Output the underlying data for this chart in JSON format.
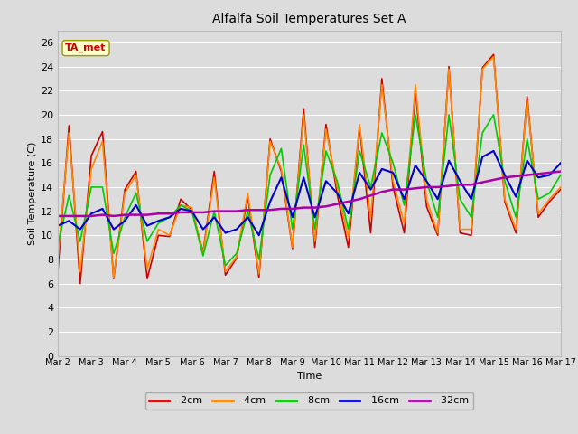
{
  "title": "Alfalfa Soil Temperatures Set A",
  "xlabel": "Time",
  "ylabel": "Soil Temperature (C)",
  "ylim": [
    0,
    27
  ],
  "yticks": [
    0,
    2,
    4,
    6,
    8,
    10,
    12,
    14,
    16,
    18,
    20,
    22,
    24,
    26
  ],
  "bg_color": "#dcdcdc",
  "fig_bg": "#dcdcdc",
  "legend_label": "TA_met",
  "series": {
    "neg2cm": {
      "label": "-2cm",
      "color": "#cc0000",
      "linewidth": 1.2,
      "values": [
        7.0,
        19.1,
        6.0,
        16.6,
        18.6,
        6.4,
        13.8,
        15.3,
        6.4,
        10.0,
        9.9,
        13.0,
        12.1,
        8.6,
        15.3,
        6.7,
        8.1,
        13.2,
        6.5,
        18.0,
        15.3,
        8.9,
        20.5,
        9.0,
        19.2,
        13.4,
        9.0,
        19.0,
        10.2,
        23.0,
        14.0,
        10.2,
        22.0,
        12.4,
        10.0,
        24.0,
        10.2,
        10.0,
        23.9,
        25.0,
        12.8,
        10.2,
        21.5,
        11.5,
        12.8,
        13.8
      ]
    },
    "neg4cm": {
      "label": "-4cm",
      "color": "#ff8800",
      "linewidth": 1.2,
      "values": [
        8.0,
        18.5,
        7.0,
        15.5,
        17.8,
        6.5,
        13.5,
        15.0,
        7.2,
        10.5,
        10.0,
        12.5,
        12.3,
        8.5,
        14.8,
        7.0,
        8.2,
        13.5,
        6.8,
        17.8,
        15.5,
        9.0,
        20.0,
        9.5,
        18.8,
        14.0,
        9.8,
        19.2,
        11.5,
        22.5,
        14.5,
        11.0,
        22.5,
        13.0,
        10.2,
        23.8,
        10.5,
        10.5,
        23.8,
        24.8,
        13.0,
        10.5,
        21.2,
        11.8,
        13.0,
        14.0
      ]
    },
    "neg8cm": {
      "label": "-8cm",
      "color": "#00cc00",
      "linewidth": 1.2,
      "values": [
        9.2,
        13.3,
        9.5,
        14.0,
        14.0,
        8.5,
        11.5,
        13.5,
        9.5,
        11.0,
        11.5,
        12.5,
        12.0,
        8.3,
        12.0,
        7.5,
        8.5,
        12.0,
        8.0,
        15.0,
        17.2,
        10.5,
        17.5,
        10.5,
        17.0,
        14.5,
        10.5,
        17.0,
        14.0,
        18.5,
        16.0,
        12.5,
        20.0,
        14.5,
        11.5,
        20.0,
        13.0,
        11.5,
        18.5,
        20.0,
        14.5,
        11.5,
        18.0,
        13.0,
        13.5,
        15.0
      ]
    },
    "neg16cm": {
      "label": "-16cm",
      "color": "#0000cc",
      "linewidth": 1.5,
      "values": [
        10.8,
        11.2,
        10.5,
        11.8,
        12.2,
        10.5,
        11.2,
        12.5,
        10.8,
        11.2,
        11.5,
        12.2,
        12.0,
        10.5,
        11.5,
        10.2,
        10.5,
        11.5,
        10.0,
        12.8,
        14.8,
        11.5,
        14.8,
        11.5,
        14.5,
        13.5,
        11.8,
        15.2,
        13.8,
        15.5,
        15.2,
        13.0,
        15.8,
        14.5,
        13.0,
        16.2,
        14.5,
        13.0,
        16.5,
        17.0,
        15.0,
        13.2,
        16.2,
        14.8,
        15.0,
        16.0
      ]
    },
    "neg32cm": {
      "label": "-32cm",
      "color": "#aa00aa",
      "linewidth": 1.8,
      "values": [
        11.6,
        11.6,
        11.6,
        11.6,
        11.7,
        11.6,
        11.7,
        11.7,
        11.7,
        11.8,
        11.8,
        11.9,
        11.9,
        11.9,
        12.0,
        12.0,
        12.0,
        12.1,
        12.1,
        12.1,
        12.2,
        12.2,
        12.3,
        12.3,
        12.4,
        12.6,
        12.8,
        13.0,
        13.3,
        13.6,
        13.8,
        13.8,
        13.9,
        14.0,
        14.0,
        14.1,
        14.2,
        14.2,
        14.4,
        14.6,
        14.8,
        14.9,
        15.0,
        15.1,
        15.2,
        15.3
      ]
    }
  },
  "xtick_labels": [
    "Mar 2",
    "Mar 3",
    "Mar 4",
    "Mar 5",
    "Mar 6",
    "Mar 7",
    "Mar 8",
    "Mar 9",
    "Mar 10",
    "Mar 11",
    "Mar 12",
    "Mar 13",
    "Mar 14",
    "Mar 15",
    "Mar 16",
    "Mar 17"
  ],
  "annotation_box_facecolor": "#ffffcc",
  "annotation_box_edgecolor": "#999900",
  "annotation_text_color": "#cc0000"
}
